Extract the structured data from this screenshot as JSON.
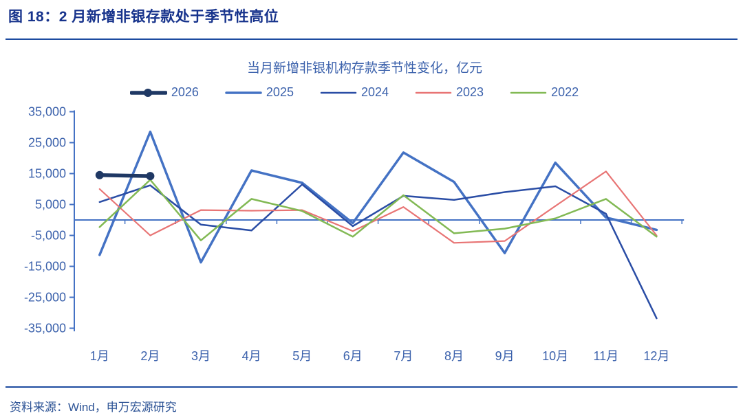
{
  "figure": {
    "title": "图 18：2 月新增非银存款处于季节性高位"
  },
  "source": {
    "text": "资料来源：Wind，申万宏源研究"
  },
  "colors": {
    "figure_title": "#17338C",
    "rule": "#1D4BA0",
    "chart_text": "#3C62AC",
    "axis_line": "#4472C4",
    "source_text": "#2E5496"
  },
  "chart_data": {
    "type": "line",
    "title": "当月新增非银机构存款季节性变化，亿元",
    "unit": "亿元",
    "legend_position": "top",
    "grid": false,
    "categories": [
      "1月",
      "2月",
      "3月",
      "4月",
      "5月",
      "6月",
      "7月",
      "8月",
      "9月",
      "10月",
      "11月",
      "12月"
    ],
    "y_axis": {
      "min": -35000,
      "max": 35000,
      "step": 10000,
      "tick_values": [
        35000,
        25000,
        15000,
        5000,
        -5000,
        -15000,
        -25000,
        -35000
      ],
      "tick_labels": [
        "35,000",
        "25,000",
        "15,000",
        "5,000",
        "-5,000",
        "-15,000",
        "-25,000",
        "-35,000"
      ]
    },
    "series": [
      {
        "name": "2026",
        "color": "#1F3864",
        "stroke_width": 5.5,
        "marker": true,
        "values": [
          14500,
          14200,
          null,
          null,
          null,
          null,
          null,
          null,
          null,
          null,
          null,
          null
        ]
      },
      {
        "name": "2025",
        "color": "#4472C4",
        "stroke_width": 3.5,
        "marker": false,
        "values": [
          -11300,
          28500,
          -13700,
          16000,
          12000,
          -1000,
          21800,
          12300,
          -10700,
          18500,
          800,
          -3200
        ]
      },
      {
        "name": "2024",
        "color": "#2A4DA5",
        "stroke_width": 2.5,
        "marker": false,
        "values": [
          5800,
          11200,
          -1500,
          -3400,
          11500,
          -2000,
          7800,
          6500,
          9000,
          10900,
          2000,
          -31800
        ]
      },
      {
        "name": "2023",
        "color": "#E87474",
        "stroke_width": 2.2,
        "marker": false,
        "values": [
          10000,
          -5000,
          3200,
          3000,
          3200,
          -3600,
          4200,
          -7400,
          -6800,
          4500,
          15700,
          -5000
        ]
      },
      {
        "name": "2022",
        "color": "#82B954",
        "stroke_width": 2.5,
        "marker": false,
        "values": [
          -2300,
          13000,
          -6600,
          6800,
          2900,
          -5400,
          8000,
          -4300,
          -2800,
          500,
          6800,
          -5400
        ]
      }
    ]
  }
}
